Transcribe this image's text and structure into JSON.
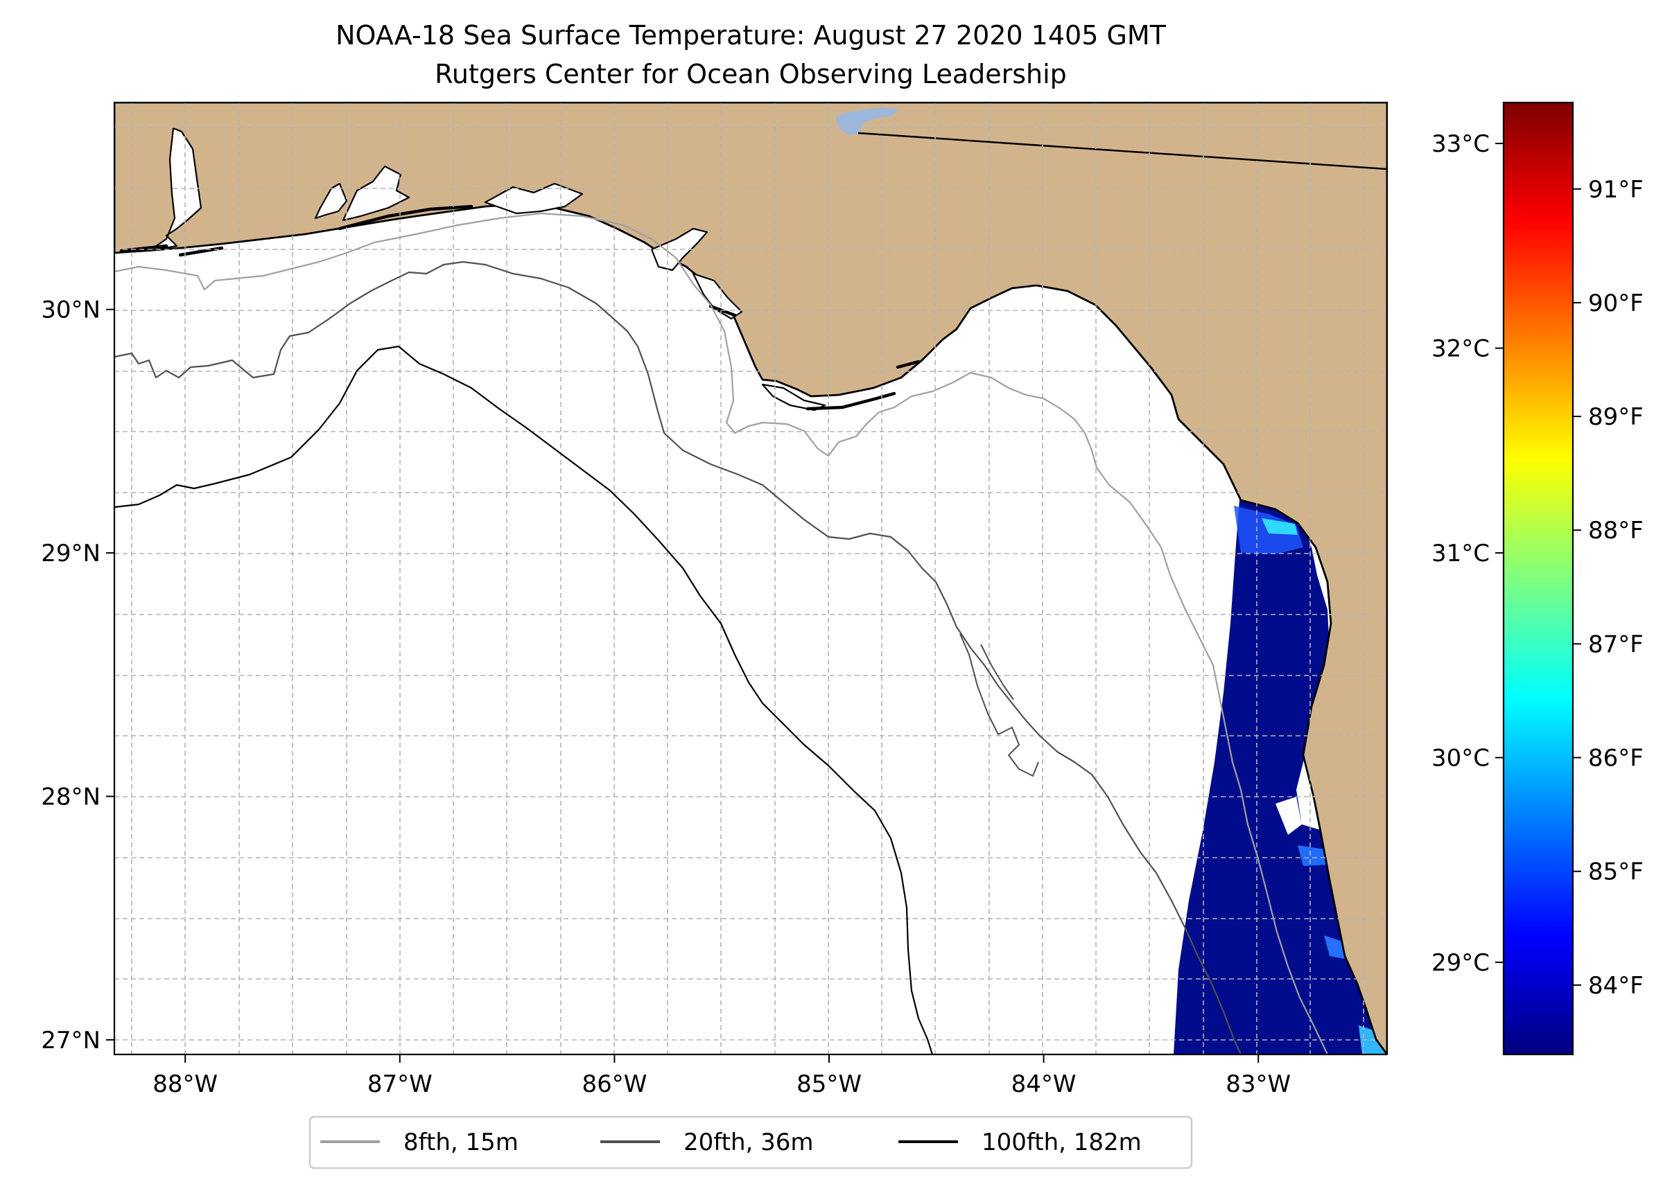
{
  "title": {
    "line1": "NOAA-18 Sea Surface Temperature: August 27 2020 1405 GMT",
    "line2": "Rutgers Center for Ocean Observing Leadership"
  },
  "map": {
    "lon_range": [
      -88.33,
      -82.4
    ],
    "lat_range": [
      26.94,
      30.85
    ],
    "lon_ticks": [
      {
        "value": -88,
        "label": "88°W"
      },
      {
        "value": -87,
        "label": "87°W"
      },
      {
        "value": -86,
        "label": "86°W"
      },
      {
        "value": -85,
        "label": "85°W"
      },
      {
        "value": -84,
        "label": "84°W"
      },
      {
        "value": -83,
        "label": "83°W"
      }
    ],
    "lat_ticks": [
      {
        "value": 30,
        "label": "30°N"
      },
      {
        "value": 29,
        "label": "29°N"
      },
      {
        "value": 28,
        "label": "28°N"
      },
      {
        "value": 27,
        "label": "27°N"
      }
    ],
    "colors": {
      "land": "#d2b48c",
      "ocean_nodata": "#ffffff",
      "lake": "#9cb7dc",
      "coast": "#000000"
    }
  },
  "colorbar": {
    "range_c": [
      28.55,
      33.2
    ],
    "celsius_ticks": [
      {
        "value": 29,
        "label": "29°C"
      },
      {
        "value": 30,
        "label": "30°C"
      },
      {
        "value": 31,
        "label": "31°C"
      },
      {
        "value": 32,
        "label": "32°C"
      },
      {
        "value": 33,
        "label": "33°C"
      }
    ],
    "fahrenheit_ticks": [
      {
        "value": 84,
        "label": "84°F"
      },
      {
        "value": 85,
        "label": "85°F"
      },
      {
        "value": 86,
        "label": "86°F"
      },
      {
        "value": 87,
        "label": "87°F"
      },
      {
        "value": 88,
        "label": "88°F"
      },
      {
        "value": 89,
        "label": "89°F"
      },
      {
        "value": 90,
        "label": "90°F"
      },
      {
        "value": 91,
        "label": "91°F"
      }
    ],
    "colormap": [
      "#00007f",
      "#0000ff",
      "#007fff",
      "#00ffff",
      "#7fff7f",
      "#ffff00",
      "#ff7f00",
      "#ff0000",
      "#7f0000"
    ]
  },
  "legend": {
    "items": [
      {
        "label": "8fth, 15m",
        "color": "#a0a0a0"
      },
      {
        "label": "20fth, 36m",
        "color": "#505050"
      },
      {
        "label": "100fth, 182m",
        "color": "#000000"
      }
    ]
  }
}
